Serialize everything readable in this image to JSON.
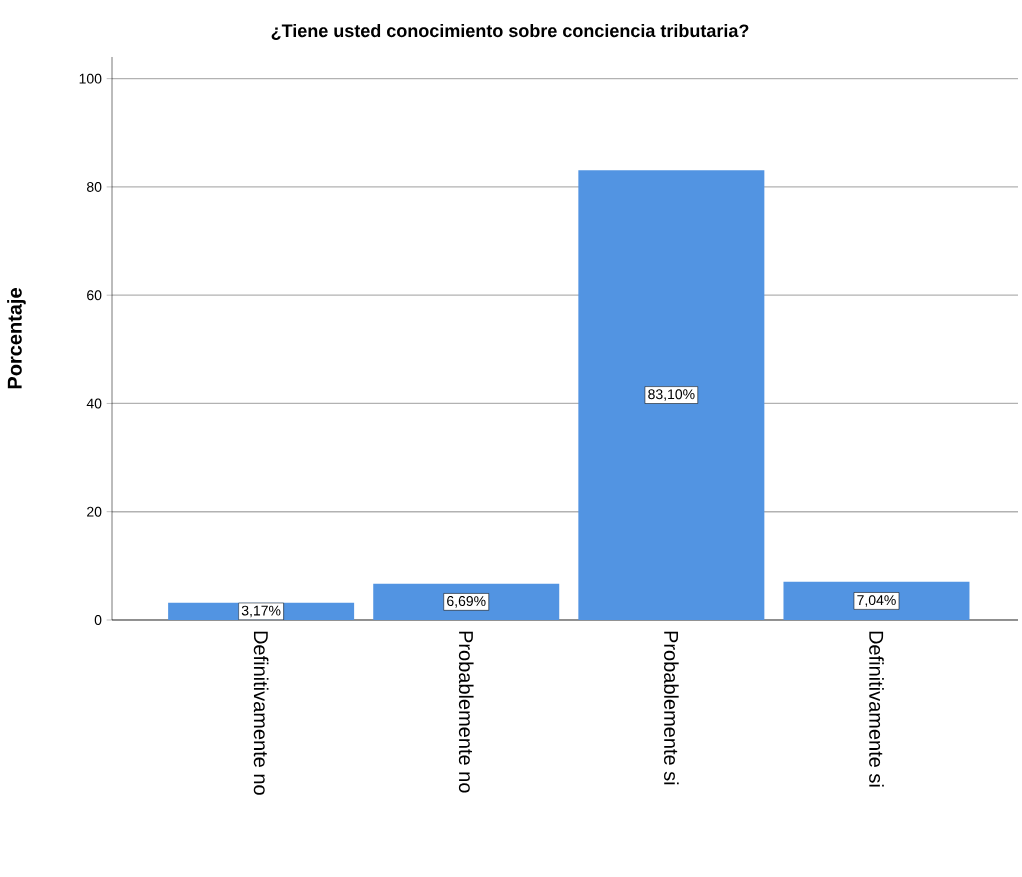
{
  "chart_data": {
    "type": "bar",
    "title": "¿Tiene usted conocimiento sobre conciencia tributaria?",
    "ylabel": "Porcentaje",
    "categories": [
      "Definitivamente no",
      "Probablemente no",
      "Probablemente si",
      "Definitivamente si"
    ],
    "values": [
      3.17,
      6.69,
      83.1,
      7.04
    ],
    "value_labels": [
      "3,17%",
      "6,69%",
      "83,10%",
      "7,04%"
    ],
    "color": "#5294e2",
    "ylim": [
      0,
      104
    ],
    "yticks": [
      0,
      20,
      40,
      60,
      80,
      100
    ],
    "grid": "y"
  }
}
